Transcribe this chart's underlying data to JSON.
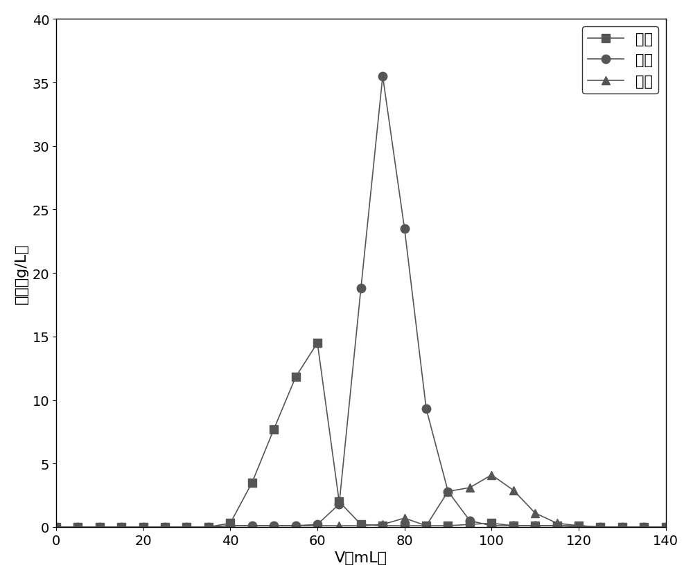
{
  "sulfuric_acid": {
    "x": [
      0,
      5,
      10,
      15,
      20,
      25,
      30,
      35,
      40,
      45,
      50,
      55,
      60,
      65,
      70,
      75,
      80,
      85,
      90,
      95,
      100,
      105,
      110,
      115,
      120,
      125,
      130,
      135,
      140
    ],
    "y": [
      0,
      0,
      0,
      0,
      0,
      0,
      0,
      0,
      0.3,
      3.5,
      7.7,
      11.8,
      14.5,
      2.0,
      0.2,
      0.1,
      0.1,
      0.1,
      0.1,
      0.2,
      0.3,
      0.1,
      0.1,
      0.1,
      0.1,
      0.0,
      0.0,
      0.0,
      0
    ],
    "color": "#555555",
    "marker": "s",
    "label": "硬酸"
  },
  "xylose": {
    "x": [
      0,
      5,
      10,
      15,
      20,
      25,
      30,
      35,
      40,
      45,
      50,
      55,
      60,
      65,
      70,
      75,
      80,
      85,
      90,
      95,
      100,
      105,
      110,
      115,
      120,
      125,
      130,
      135,
      140
    ],
    "y": [
      0,
      0,
      0,
      0,
      0,
      0,
      0,
      0,
      0.1,
      0.1,
      0.1,
      0.1,
      0.2,
      1.8,
      18.8,
      35.5,
      23.5,
      9.3,
      2.8,
      0.5,
      0.1,
      0.1,
      0.1,
      0.1,
      0.0,
      0.0,
      0.0,
      0.0,
      0
    ],
    "color": "#555555",
    "marker": "o",
    "label": "木糖"
  },
  "acetic_acid": {
    "x": [
      0,
      5,
      10,
      15,
      20,
      25,
      30,
      35,
      40,
      45,
      50,
      55,
      60,
      65,
      70,
      75,
      80,
      85,
      90,
      95,
      100,
      105,
      110,
      115,
      120,
      125,
      130,
      135,
      140
    ],
    "y": [
      0,
      0,
      0,
      0,
      0,
      0,
      0,
      0,
      0.1,
      0.1,
      0.1,
      0.1,
      0.1,
      0.1,
      0.1,
      0.2,
      0.7,
      0.1,
      2.8,
      3.1,
      4.1,
      2.9,
      1.1,
      0.3,
      0.1,
      0.0,
      0.0,
      0.0,
      0
    ],
    "color": "#555555",
    "marker": "^",
    "label": "乙酸"
  },
  "xlabel": "V（mL）",
  "ylabel": "浓度（g/L）",
  "xlim": [
    0,
    140
  ],
  "ylim": [
    0,
    40
  ],
  "xticks": [
    0,
    20,
    40,
    60,
    80,
    100,
    120,
    140
  ],
  "yticks": [
    0,
    5,
    10,
    15,
    20,
    25,
    30,
    35,
    40
  ],
  "background_color": "#ffffff",
  "legend_loc": "upper right",
  "fontsize_label": 16,
  "fontsize_tick": 14,
  "fontsize_legend": 15,
  "marker_size_sq": 8,
  "marker_size_circ": 9,
  "marker_size_tri": 8,
  "linewidth": 1.2
}
